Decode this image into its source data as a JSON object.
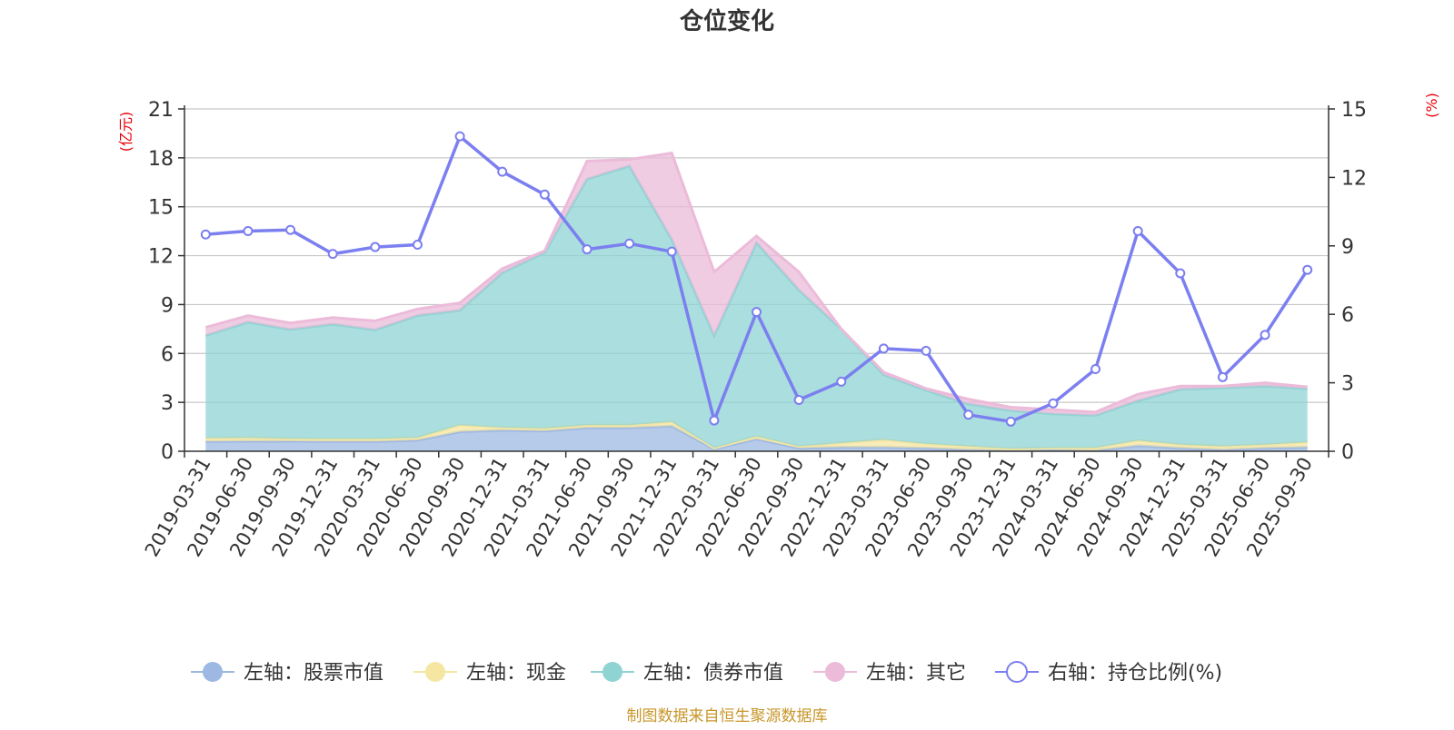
{
  "chart_data": {
    "type": "area",
    "title": "仓位变化",
    "left_axis_unit": "(亿元)",
    "right_axis_unit": "(%)",
    "left_ylim": [
      0,
      21
    ],
    "left_ticks": [
      0,
      3,
      6,
      9,
      12,
      15,
      18,
      21
    ],
    "right_ylim": [
      0,
      15
    ],
    "right_ticks": [
      0,
      3,
      6,
      9,
      12,
      15
    ],
    "categories": [
      "2019-03-31",
      "2019-06-30",
      "2019-09-30",
      "2019-12-31",
      "2020-03-31",
      "2020-06-30",
      "2020-09-30",
      "2020-12-31",
      "2021-03-31",
      "2021-06-30",
      "2021-09-30",
      "2021-12-31",
      "2022-03-31",
      "2022-06-30",
      "2022-09-30",
      "2022-12-31",
      "2023-03-31",
      "2023-06-30",
      "2023-09-30",
      "2023-12-31",
      "2024-03-31",
      "2024-06-30",
      "2024-09-30",
      "2024-12-31",
      "2025-03-31",
      "2025-06-30",
      "2025-09-30"
    ],
    "series": [
      {
        "name": "左轴：股票市值",
        "axis": "left",
        "kind": "stacked-area",
        "color": "#9db8e2",
        "values": [
          0.6,
          0.62,
          0.62,
          0.6,
          0.6,
          0.68,
          1.2,
          1.3,
          1.25,
          1.45,
          1.45,
          1.55,
          0.15,
          0.75,
          0.2,
          0.25,
          0.25,
          0.2,
          0.1,
          0.05,
          0.1,
          0.05,
          0.35,
          0.2,
          0.1,
          0.2,
          0.25
        ]
      },
      {
        "name": "左轴：现金",
        "axis": "left",
        "kind": "stacked-area",
        "color": "#f5e6a1",
        "values": [
          0.2,
          0.2,
          0.15,
          0.15,
          0.15,
          0.15,
          0.4,
          0.15,
          0.15,
          0.15,
          0.15,
          0.25,
          0.05,
          0.15,
          0.1,
          0.25,
          0.45,
          0.25,
          0.2,
          0.1,
          0.1,
          0.15,
          0.3,
          0.2,
          0.2,
          0.2,
          0.3
        ]
      },
      {
        "name": "左轴：债券市值",
        "axis": "left",
        "kind": "stacked-area",
        "color": "#8fd3d3",
        "values": [
          6.3,
          7.1,
          6.7,
          7.05,
          6.7,
          7.5,
          7.05,
          9.5,
          10.8,
          15.1,
          15.9,
          11.2,
          6.9,
          11.9,
          9.6,
          7.0,
          4.0,
          3.3,
          2.6,
          2.35,
          2.1,
          2.0,
          2.45,
          3.4,
          3.6,
          3.6,
          3.3
        ]
      },
      {
        "name": "左轴：其它",
        "axis": "left",
        "kind": "stacked-area",
        "color": "#ebbbd9",
        "values": [
          0.5,
          0.4,
          0.4,
          0.4,
          0.55,
          0.4,
          0.45,
          0.25,
          0.1,
          1.1,
          0.4,
          5.3,
          3.9,
          0.4,
          1.1,
          0,
          0.15,
          0.1,
          0.3,
          0.2,
          0.25,
          0.2,
          0.4,
          0.2,
          0.1,
          0.2,
          0.1
        ]
      },
      {
        "name": "右轴：持仓比例(%)",
        "axis": "right",
        "kind": "line",
        "color": "#7b7ff0",
        "values": [
          9.5,
          9.65,
          9.7,
          8.65,
          8.95,
          9.05,
          13.8,
          12.25,
          11.25,
          8.85,
          9.1,
          8.75,
          1.35,
          6.1,
          2.25,
          3.05,
          4.5,
          4.4,
          1.6,
          1.3,
          2.1,
          3.6,
          9.65,
          7.8,
          3.25,
          5.1,
          7.95
        ]
      }
    ],
    "legend_position": "bottom",
    "grid": true
  },
  "colors": {
    "unit_label": "#e8000b",
    "footer": "#c8962a",
    "grid": "#c8c8c8",
    "axis": "#333333"
  },
  "footer": {
    "source_text": "制图数据来自恒生聚源数据库"
  }
}
